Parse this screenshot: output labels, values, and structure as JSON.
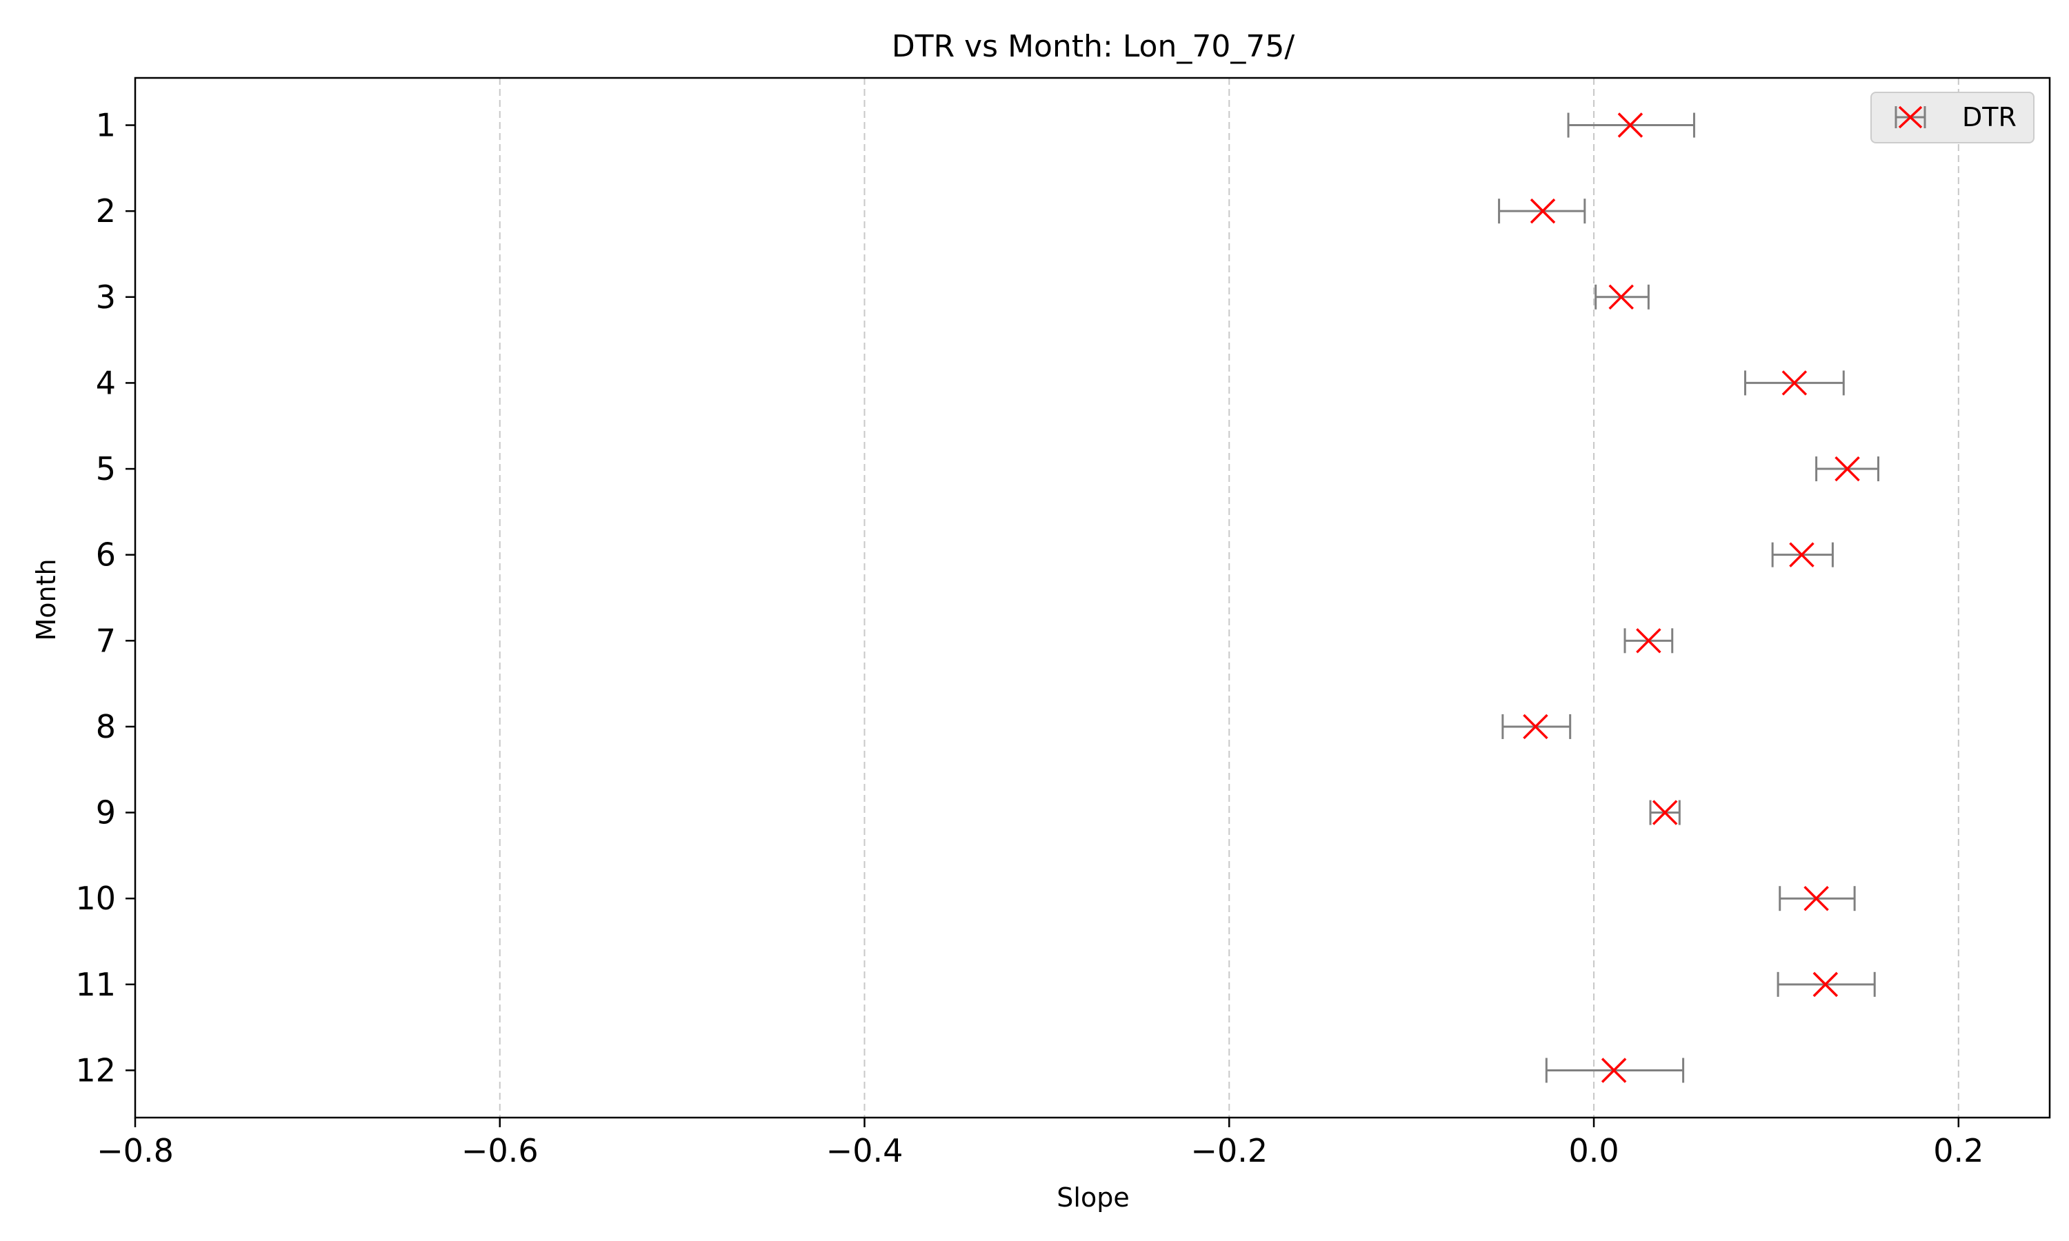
{
  "chart_data": {
    "type": "scatter",
    "title": "DTR vs Month: Lon_70_75/",
    "xlabel": "Slope",
    "ylabel": "Month",
    "xlim": [
      -0.8,
      0.25
    ],
    "ylim": [
      12.55,
      0.45
    ],
    "xticks": [
      -0.8,
      -0.6,
      -0.4,
      -0.2,
      0.0,
      0.2
    ],
    "xtick_labels": [
      "−0.8",
      "−0.6",
      "−0.4",
      "−0.2",
      "0.0",
      "0.2"
    ],
    "yticks": [
      1,
      2,
      3,
      4,
      5,
      6,
      7,
      8,
      9,
      10,
      11,
      12
    ],
    "ytick_labels": [
      "1",
      "2",
      "3",
      "4",
      "5",
      "6",
      "7",
      "8",
      "9",
      "10",
      "11",
      "12"
    ],
    "grid": "x-dashed",
    "legend": {
      "position": "top-right",
      "entries": [
        "DTR"
      ]
    },
    "series": [
      {
        "name": "DTR",
        "marker": "x",
        "marker_color": "#ff0000",
        "errorbar_color": "#808080",
        "points": [
          {
            "month": 1,
            "slope": 0.02,
            "err_low": -0.014,
            "err_high": 0.055
          },
          {
            "month": 2,
            "slope": -0.028,
            "err_low": -0.052,
            "err_high": -0.005
          },
          {
            "month": 3,
            "slope": 0.015,
            "err_low": 0.001,
            "err_high": 0.03
          },
          {
            "month": 4,
            "slope": 0.11,
            "err_low": 0.083,
            "err_high": 0.137
          },
          {
            "month": 5,
            "slope": 0.139,
            "err_low": 0.122,
            "err_high": 0.156
          },
          {
            "month": 6,
            "slope": 0.114,
            "err_low": 0.098,
            "err_high": 0.131
          },
          {
            "month": 7,
            "slope": 0.03,
            "err_low": 0.017,
            "err_high": 0.043
          },
          {
            "month": 8,
            "slope": -0.032,
            "err_low": -0.05,
            "err_high": -0.013
          },
          {
            "month": 9,
            "slope": 0.039,
            "err_low": 0.031,
            "err_high": 0.047
          },
          {
            "month": 10,
            "slope": 0.122,
            "err_low": 0.102,
            "err_high": 0.143
          },
          {
            "month": 11,
            "slope": 0.127,
            "err_low": 0.101,
            "err_high": 0.154
          },
          {
            "month": 12,
            "slope": 0.011,
            "err_low": -0.026,
            "err_high": 0.049
          }
        ]
      }
    ]
  }
}
